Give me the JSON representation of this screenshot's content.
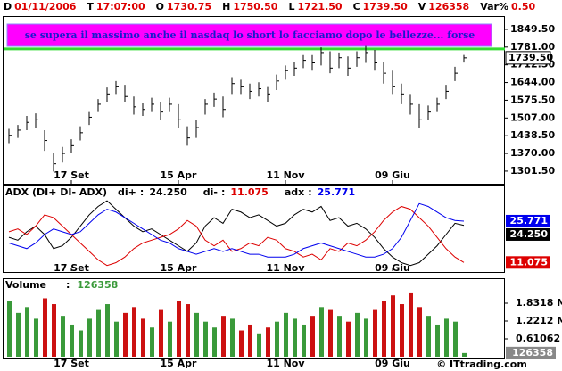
{
  "header": {
    "fields": [
      {
        "key": "D",
        "value": "01/11/2006"
      },
      {
        "key": "T",
        "value": "17:07:00"
      },
      {
        "key": "O",
        "value": "1730.75"
      },
      {
        "key": "H",
        "value": "1750.50"
      },
      {
        "key": "L",
        "value": "1721.50"
      },
      {
        "key": "C",
        "value": "1739.50"
      },
      {
        "key": "V",
        "value": "126358"
      },
      {
        "key": "Var%",
        "value": "0.50"
      }
    ]
  },
  "footer": "© ITtrading.com",
  "chart_data": [
    {
      "type": "ohlc",
      "color": "#000000",
      "categories": [
        null,
        null,
        null,
        null,
        null,
        null,
        null,
        "17 Set",
        null,
        null,
        null,
        null,
        null,
        null,
        null,
        null,
        null,
        null,
        null,
        "15 Apr",
        null,
        null,
        null,
        null,
        null,
        null,
        null,
        null,
        null,
        null,
        null,
        "11 Nov",
        null,
        null,
        null,
        null,
        null,
        null,
        null,
        null,
        null,
        null,
        null,
        "09 Giu",
        null,
        null,
        null,
        null,
        null,
        null,
        null,
        null
      ],
      "high": [
        1465,
        1480,
        1515,
        1525,
        1460,
        1370,
        1395,
        1425,
        1475,
        1530,
        1580,
        1625,
        1650,
        1635,
        1590,
        1565,
        1585,
        1570,
        1585,
        1560,
        1475,
        1500,
        1580,
        1605,
        1590,
        1665,
        1655,
        1640,
        1645,
        1630,
        1675,
        1710,
        1725,
        1750,
        1750,
        1780,
        1765,
        1760,
        1745,
        1765,
        1785,
        1770,
        1725,
        1690,
        1640,
        1600,
        1560,
        1555,
        1585,
        1635,
        1705,
        1750.5
      ],
      "low": [
        1410,
        1430,
        1460,
        1470,
        1380,
        1300,
        1335,
        1370,
        1420,
        1480,
        1530,
        1570,
        1600,
        1570,
        1520,
        1515,
        1530,
        1500,
        1530,
        1470,
        1400,
        1430,
        1520,
        1550,
        1510,
        1600,
        1600,
        1580,
        1590,
        1570,
        1615,
        1655,
        1670,
        1700,
        1690,
        1710,
        1680,
        1700,
        1670,
        1705,
        1720,
        1690,
        1640,
        1600,
        1560,
        1520,
        1470,
        1500,
        1530,
        1580,
        1650,
        1721.5
      ],
      "close": [
        1440,
        1460,
        1490,
        1500,
        1420,
        1330,
        1370,
        1400,
        1450,
        1510,
        1560,
        1600,
        1630,
        1590,
        1550,
        1540,
        1560,
        1530,
        1560,
        1500,
        1430,
        1470,
        1560,
        1580,
        1540,
        1640,
        1630,
        1610,
        1620,
        1600,
        1650,
        1690,
        1700,
        1730,
        1720,
        1760,
        1700,
        1740,
        1700,
        1740,
        1760,
        1720,
        1680,
        1630,
        1600,
        1560,
        1500,
        1530,
        1560,
        1610,
        1680,
        1739.5
      ],
      "ylim": [
        1253,
        1901
      ],
      "yticks": [
        {
          "value": 1849.5,
          "label": "1849.50"
        },
        {
          "value": 1781,
          "label": "1781.00"
        },
        {
          "value": 1712.5,
          "label": "1712.50"
        },
        {
          "value": 1644,
          "label": "1644.00"
        },
        {
          "value": 1575.5,
          "label": "1575.50"
        },
        {
          "value": 1507,
          "label": "1507.00"
        },
        {
          "value": 1438.5,
          "label": "1438.50"
        },
        {
          "value": 1370,
          "label": "1370.00"
        },
        {
          "value": 1301.5,
          "label": "1301.50"
        }
      ],
      "last_label": {
        "value": 1739.5,
        "label": "1739.50"
      },
      "hline": {
        "value": 1774,
        "color": "#33dd33"
      },
      "annotation": {
        "text": "se supera il massimo anche il nasdaq lo short lo facciamo dopo le bellezze... forse",
        "background": "#ff00ff",
        "color": "#1a1acc"
      }
    },
    {
      "type": "line",
      "title": "ADX (DI+ DI- ADX)",
      "legend_separator": ":",
      "ylim": [
        8,
        34
      ],
      "series": [
        {
          "name": "di+",
          "color": "#000000",
          "last_label": "24.250",
          "values": [
            20,
            19,
            22,
            24,
            21,
            16,
            17,
            20,
            24,
            28,
            31,
            33,
            30,
            27,
            24,
            22,
            23,
            21,
            19,
            17,
            15,
            18,
            24,
            27,
            25,
            30,
            29,
            27,
            28,
            26,
            24,
            25,
            28,
            30,
            29,
            31,
            26,
            27,
            24,
            25,
            23,
            20,
            16,
            13,
            11,
            10,
            11,
            14,
            17,
            21,
            25,
            24.25
          ]
        },
        {
          "name": "di-",
          "color": "#dd0000",
          "last_label": "11.075",
          "values": [
            22,
            23,
            21,
            24,
            28,
            27,
            24,
            21,
            18,
            15,
            12,
            10,
            11,
            13,
            16,
            18,
            19,
            20,
            21,
            23,
            26,
            24,
            19,
            17,
            19,
            15,
            16,
            18,
            17,
            20,
            19,
            16,
            15,
            13,
            14,
            12,
            16,
            15,
            18,
            17,
            19,
            22,
            26,
            29,
            31,
            30,
            27,
            24,
            20,
            16,
            13,
            11.075
          ]
        },
        {
          "name": "adx",
          "color": "#0000ee",
          "last_label": "25.771",
          "values": [
            18,
            17,
            16,
            18,
            21,
            23,
            22,
            21,
            22,
            25,
            28,
            30,
            29,
            27,
            25,
            23,
            21,
            19,
            18,
            16,
            15,
            14,
            15,
            16,
            15,
            16,
            15,
            14,
            14,
            13,
            13,
            13,
            14,
            16,
            17,
            18,
            17,
            16,
            15,
            14,
            13,
            13,
            14,
            16,
            20,
            26,
            32,
            31,
            29,
            27,
            26,
            25.771
          ]
        }
      ]
    },
    {
      "type": "bar",
      "title": "Volume",
      "legend_separator": ":",
      "up_color": "#3a9a3a",
      "down_color": "#cc1111",
      "values": [
        1900000,
        1500000,
        1700000,
        1300000,
        2000000,
        1800000,
        1400000,
        1100000,
        900000,
        1300000,
        1600000,
        1800000,
        1200000,
        1500000,
        1700000,
        1300000,
        1000000,
        1600000,
        1200000,
        1900000,
        1800000,
        1500000,
        1200000,
        1000000,
        1400000,
        1300000,
        900000,
        1100000,
        800000,
        1000000,
        1200000,
        1500000,
        1300000,
        1100000,
        1400000,
        1700000,
        1600000,
        1400000,
        1200000,
        1500000,
        1300000,
        1600000,
        1900000,
        2100000,
        1800000,
        2200000,
        1700000,
        1400000,
        1100000,
        1300000,
        1200000,
        126358
      ],
      "ylim": [
        0,
        2259000
      ],
      "yticks": [
        {
          "value": 1831800,
          "label": "1.8318 M"
        },
        {
          "value": 1221200,
          "label": "1.2212 M"
        },
        {
          "value": 610620,
          "label": "0.61062 M"
        }
      ]
    }
  ]
}
